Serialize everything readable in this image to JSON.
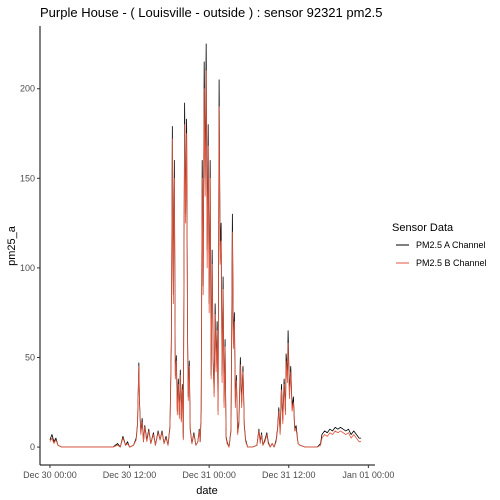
{
  "chart_data": {
    "type": "line",
    "title": "Purple House - ( Louisville - outside ) : sensor 92321 pm2.5",
    "xlabel": "date",
    "ylabel": "pm25_a",
    "x_unit": "hours",
    "x_ticks": [
      {
        "value": 0,
        "label": "Dec 30 00:00"
      },
      {
        "value": 12,
        "label": "Dec 30 12:00"
      },
      {
        "value": 24,
        "label": "Dec 31 00:00"
      },
      {
        "value": 36,
        "label": "Dec 31 12:00"
      },
      {
        "value": 48,
        "label": "Jan 01 00:00"
      }
    ],
    "y_ticks": [
      0,
      50,
      100,
      150,
      200
    ],
    "xlim": [
      -1.5,
      49
    ],
    "ylim": [
      -10,
      235
    ],
    "grid": false,
    "legend": {
      "title": "Sensor Data",
      "position": "right"
    },
    "series": [
      {
        "name": "PM2.5 A Channel",
        "color": "#000000",
        "points": [
          [
            0.0,
            4
          ],
          [
            0.3,
            7
          ],
          [
            0.6,
            3
          ],
          [
            0.9,
            5
          ],
          [
            1.2,
            1
          ],
          [
            1.8,
            0
          ],
          [
            4,
            0
          ],
          [
            7,
            0
          ],
          [
            9.5,
            0
          ],
          [
            10.2,
            2
          ],
          [
            10.6,
            0
          ],
          [
            11.0,
            6
          ],
          [
            11.4,
            1
          ],
          [
            11.7,
            3
          ],
          [
            12.0,
            0
          ],
          [
            12.6,
            1
          ],
          [
            13.0,
            5
          ],
          [
            13.2,
            13
          ],
          [
            13.4,
            47
          ],
          [
            13.5,
            25
          ],
          [
            13.7,
            8
          ],
          [
            13.9,
            16
          ],
          [
            14.1,
            3
          ],
          [
            14.3,
            12
          ],
          [
            14.6,
            4
          ],
          [
            14.9,
            10
          ],
          [
            15.2,
            2
          ],
          [
            15.6,
            8
          ],
          [
            15.9,
            1
          ],
          [
            16.3,
            9
          ],
          [
            16.6,
            4
          ],
          [
            16.9,
            9
          ],
          [
            17.2,
            2
          ],
          [
            17.5,
            6
          ],
          [
            17.8,
            1
          ],
          [
            18.1,
            12
          ],
          [
            18.3,
            60
          ],
          [
            18.45,
            179
          ],
          [
            18.6,
            85
          ],
          [
            18.75,
            160
          ],
          [
            18.9,
            40
          ],
          [
            19.05,
            51
          ],
          [
            19.2,
            20
          ],
          [
            19.35,
            38
          ],
          [
            19.5,
            18
          ],
          [
            19.65,
            43
          ],
          [
            19.8,
            15
          ],
          [
            19.95,
            35
          ],
          [
            20.1,
            5
          ],
          [
            20.3,
            192
          ],
          [
            20.45,
            130
          ],
          [
            20.6,
            183
          ],
          [
            20.75,
            60
          ],
          [
            20.85,
            28
          ],
          [
            21.0,
            48
          ],
          [
            21.15,
            10
          ],
          [
            21.4,
            2
          ],
          [
            21.7,
            8
          ],
          [
            22.0,
            1
          ],
          [
            22.3,
            3
          ],
          [
            22.5,
            10
          ],
          [
            22.65,
            3
          ],
          [
            22.8,
            20
          ],
          [
            22.95,
            160
          ],
          [
            23.1,
            90
          ],
          [
            23.25,
            215
          ],
          [
            23.4,
            150
          ],
          [
            23.55,
            225
          ],
          [
            23.7,
            110
          ],
          [
            23.85,
            180
          ],
          [
            24.0,
            80
          ],
          [
            24.15,
            160
          ],
          [
            24.3,
            40
          ],
          [
            24.45,
            110
          ],
          [
            24.6,
            50
          ],
          [
            24.75,
            30
          ],
          [
            24.9,
            80
          ],
          [
            25.05,
            45
          ],
          [
            25.2,
            70
          ],
          [
            25.35,
            20
          ],
          [
            25.5,
            205
          ],
          [
            25.65,
            110
          ],
          [
            25.8,
            125
          ],
          [
            25.95,
            40
          ],
          [
            26.1,
            95
          ],
          [
            26.25,
            25
          ],
          [
            26.4,
            60
          ],
          [
            26.55,
            6
          ],
          [
            26.7,
            3
          ],
          [
            27.0,
            0
          ],
          [
            27.3,
            10
          ],
          [
            27.5,
            130
          ],
          [
            27.65,
            60
          ],
          [
            27.8,
            75
          ],
          [
            27.95,
            25
          ],
          [
            28.1,
            40
          ],
          [
            28.3,
            8
          ],
          [
            28.5,
            15
          ],
          [
            28.7,
            50
          ],
          [
            28.9,
            25
          ],
          [
            29.1,
            45
          ],
          [
            29.3,
            12
          ],
          [
            29.5,
            4
          ],
          [
            29.8,
            0
          ],
          [
            30.5,
            0
          ],
          [
            31.2,
            1
          ],
          [
            31.5,
            10
          ],
          [
            31.7,
            3
          ],
          [
            31.9,
            8
          ],
          [
            32.1,
            1
          ],
          [
            32.4,
            4
          ],
          [
            32.7,
            8
          ],
          [
            32.9,
            3
          ],
          [
            33.2,
            0
          ],
          [
            33.5,
            2
          ],
          [
            33.8,
            0
          ],
          [
            34.1,
            4
          ],
          [
            34.3,
            10
          ],
          [
            34.5,
            22
          ],
          [
            34.7,
            8
          ],
          [
            34.9,
            35
          ],
          [
            35.1,
            15
          ],
          [
            35.3,
            38
          ],
          [
            35.5,
            20
          ],
          [
            35.6,
            52
          ],
          [
            35.8,
            40
          ],
          [
            35.9,
            65
          ],
          [
            36.1,
            30
          ],
          [
            36.3,
            45
          ],
          [
            36.5,
            22
          ],
          [
            36.7,
            28
          ],
          [
            36.9,
            10
          ],
          [
            37.1,
            12
          ],
          [
            37.4,
            2
          ],
          [
            37.7,
            1
          ],
          [
            38.5,
            0
          ],
          [
            39.5,
            0
          ],
          [
            40.3,
            0
          ],
          [
            40.8,
            2
          ],
          [
            41.0,
            7
          ],
          [
            41.4,
            9
          ],
          [
            41.8,
            8
          ],
          [
            42.2,
            10
          ],
          [
            42.6,
            9
          ],
          [
            43.0,
            11
          ],
          [
            43.4,
            10
          ],
          [
            43.8,
            11
          ],
          [
            44.2,
            10
          ],
          [
            44.6,
            9
          ],
          [
            45.0,
            10
          ],
          [
            45.4,
            7
          ],
          [
            45.8,
            9
          ],
          [
            46.2,
            7
          ],
          [
            46.6,
            5
          ],
          [
            46.9,
            5
          ]
        ]
      },
      {
        "name": "PM2.5 B Channel",
        "color": "#e3563c",
        "points": [
          [
            0.0,
            3
          ],
          [
            0.3,
            5
          ],
          [
            0.6,
            2
          ],
          [
            0.9,
            4
          ],
          [
            1.2,
            1
          ],
          [
            1.8,
            0
          ],
          [
            4,
            0
          ],
          [
            7,
            0
          ],
          [
            9.5,
            0
          ],
          [
            10.2,
            1
          ],
          [
            10.6,
            0
          ],
          [
            11.0,
            5
          ],
          [
            11.4,
            1
          ],
          [
            11.7,
            2
          ],
          [
            12.0,
            0
          ],
          [
            12.6,
            1
          ],
          [
            13.0,
            4
          ],
          [
            13.2,
            12
          ],
          [
            13.4,
            45
          ],
          [
            13.5,
            24
          ],
          [
            13.7,
            7
          ],
          [
            13.9,
            14
          ],
          [
            14.1,
            3
          ],
          [
            14.3,
            11
          ],
          [
            14.6,
            3
          ],
          [
            14.9,
            9
          ],
          [
            15.2,
            2
          ],
          [
            15.6,
            7
          ],
          [
            15.9,
            1
          ],
          [
            16.3,
            8
          ],
          [
            16.6,
            4
          ],
          [
            16.9,
            8
          ],
          [
            17.2,
            2
          ],
          [
            17.5,
            5
          ],
          [
            17.8,
            1
          ],
          [
            18.1,
            11
          ],
          [
            18.3,
            55
          ],
          [
            18.45,
            172
          ],
          [
            18.6,
            80
          ],
          [
            18.75,
            150
          ],
          [
            18.9,
            38
          ],
          [
            19.05,
            48
          ],
          [
            19.2,
            18
          ],
          [
            19.35,
            35
          ],
          [
            19.5,
            16
          ],
          [
            19.65,
            40
          ],
          [
            19.8,
            14
          ],
          [
            19.95,
            32
          ],
          [
            20.1,
            4
          ],
          [
            20.3,
            180
          ],
          [
            20.45,
            125
          ],
          [
            20.6,
            175
          ],
          [
            20.75,
            55
          ],
          [
            20.85,
            26
          ],
          [
            21.0,
            45
          ],
          [
            21.15,
            9
          ],
          [
            21.4,
            2
          ],
          [
            21.7,
            7
          ],
          [
            22.0,
            1
          ],
          [
            22.3,
            3
          ],
          [
            22.5,
            9
          ],
          [
            22.65,
            3
          ],
          [
            22.8,
            18
          ],
          [
            22.95,
            150
          ],
          [
            23.1,
            85
          ],
          [
            23.25,
            200
          ],
          [
            23.4,
            140
          ],
          [
            23.55,
            210
          ],
          [
            23.7,
            100
          ],
          [
            23.85,
            168
          ],
          [
            24.0,
            75
          ],
          [
            24.15,
            150
          ],
          [
            24.3,
            38
          ],
          [
            24.45,
            102
          ],
          [
            24.6,
            46
          ],
          [
            24.75,
            28
          ],
          [
            24.9,
            74
          ],
          [
            25.05,
            42
          ],
          [
            25.2,
            65
          ],
          [
            25.35,
            18
          ],
          [
            25.5,
            190
          ],
          [
            25.65,
            102
          ],
          [
            25.8,
            115
          ],
          [
            25.95,
            36
          ],
          [
            26.1,
            88
          ],
          [
            26.25,
            22
          ],
          [
            26.4,
            56
          ],
          [
            26.55,
            5
          ],
          [
            26.7,
            2
          ],
          [
            27.0,
            0
          ],
          [
            27.3,
            9
          ],
          [
            27.5,
            120
          ],
          [
            27.65,
            55
          ],
          [
            27.8,
            70
          ],
          [
            27.95,
            22
          ],
          [
            28.1,
            37
          ],
          [
            28.3,
            7
          ],
          [
            28.5,
            13
          ],
          [
            28.7,
            46
          ],
          [
            28.9,
            22
          ],
          [
            29.1,
            42
          ],
          [
            29.3,
            11
          ],
          [
            29.5,
            3
          ],
          [
            29.8,
            0
          ],
          [
            30.5,
            0
          ],
          [
            31.2,
            1
          ],
          [
            31.5,
            9
          ],
          [
            31.7,
            2
          ],
          [
            31.9,
            7
          ],
          [
            32.1,
            1
          ],
          [
            32.4,
            3
          ],
          [
            32.7,
            7
          ],
          [
            32.9,
            2
          ],
          [
            33.2,
            0
          ],
          [
            33.5,
            2
          ],
          [
            33.8,
            0
          ],
          [
            34.1,
            3
          ],
          [
            34.3,
            9
          ],
          [
            34.5,
            20
          ],
          [
            34.7,
            7
          ],
          [
            34.9,
            32
          ],
          [
            35.1,
            13
          ],
          [
            35.3,
            35
          ],
          [
            35.5,
            18
          ],
          [
            35.6,
            48
          ],
          [
            35.8,
            36
          ],
          [
            35.9,
            58
          ],
          [
            36.1,
            27
          ],
          [
            36.3,
            42
          ],
          [
            36.5,
            20
          ],
          [
            36.7,
            25
          ],
          [
            36.9,
            9
          ],
          [
            37.1,
            10
          ],
          [
            37.4,
            2
          ],
          [
            37.7,
            1
          ],
          [
            38.5,
            0
          ],
          [
            39.5,
            0
          ],
          [
            40.3,
            0
          ],
          [
            40.8,
            1
          ],
          [
            41.0,
            5
          ],
          [
            41.4,
            7
          ],
          [
            41.8,
            6
          ],
          [
            42.2,
            8
          ],
          [
            42.6,
            7
          ],
          [
            43.0,
            9
          ],
          [
            43.4,
            8
          ],
          [
            43.8,
            9
          ],
          [
            44.2,
            8
          ],
          [
            44.6,
            7
          ],
          [
            45.0,
            8
          ],
          [
            45.4,
            5
          ],
          [
            45.8,
            7
          ],
          [
            46.2,
            5
          ],
          [
            46.6,
            3
          ],
          [
            46.9,
            3
          ]
        ]
      }
    ]
  }
}
